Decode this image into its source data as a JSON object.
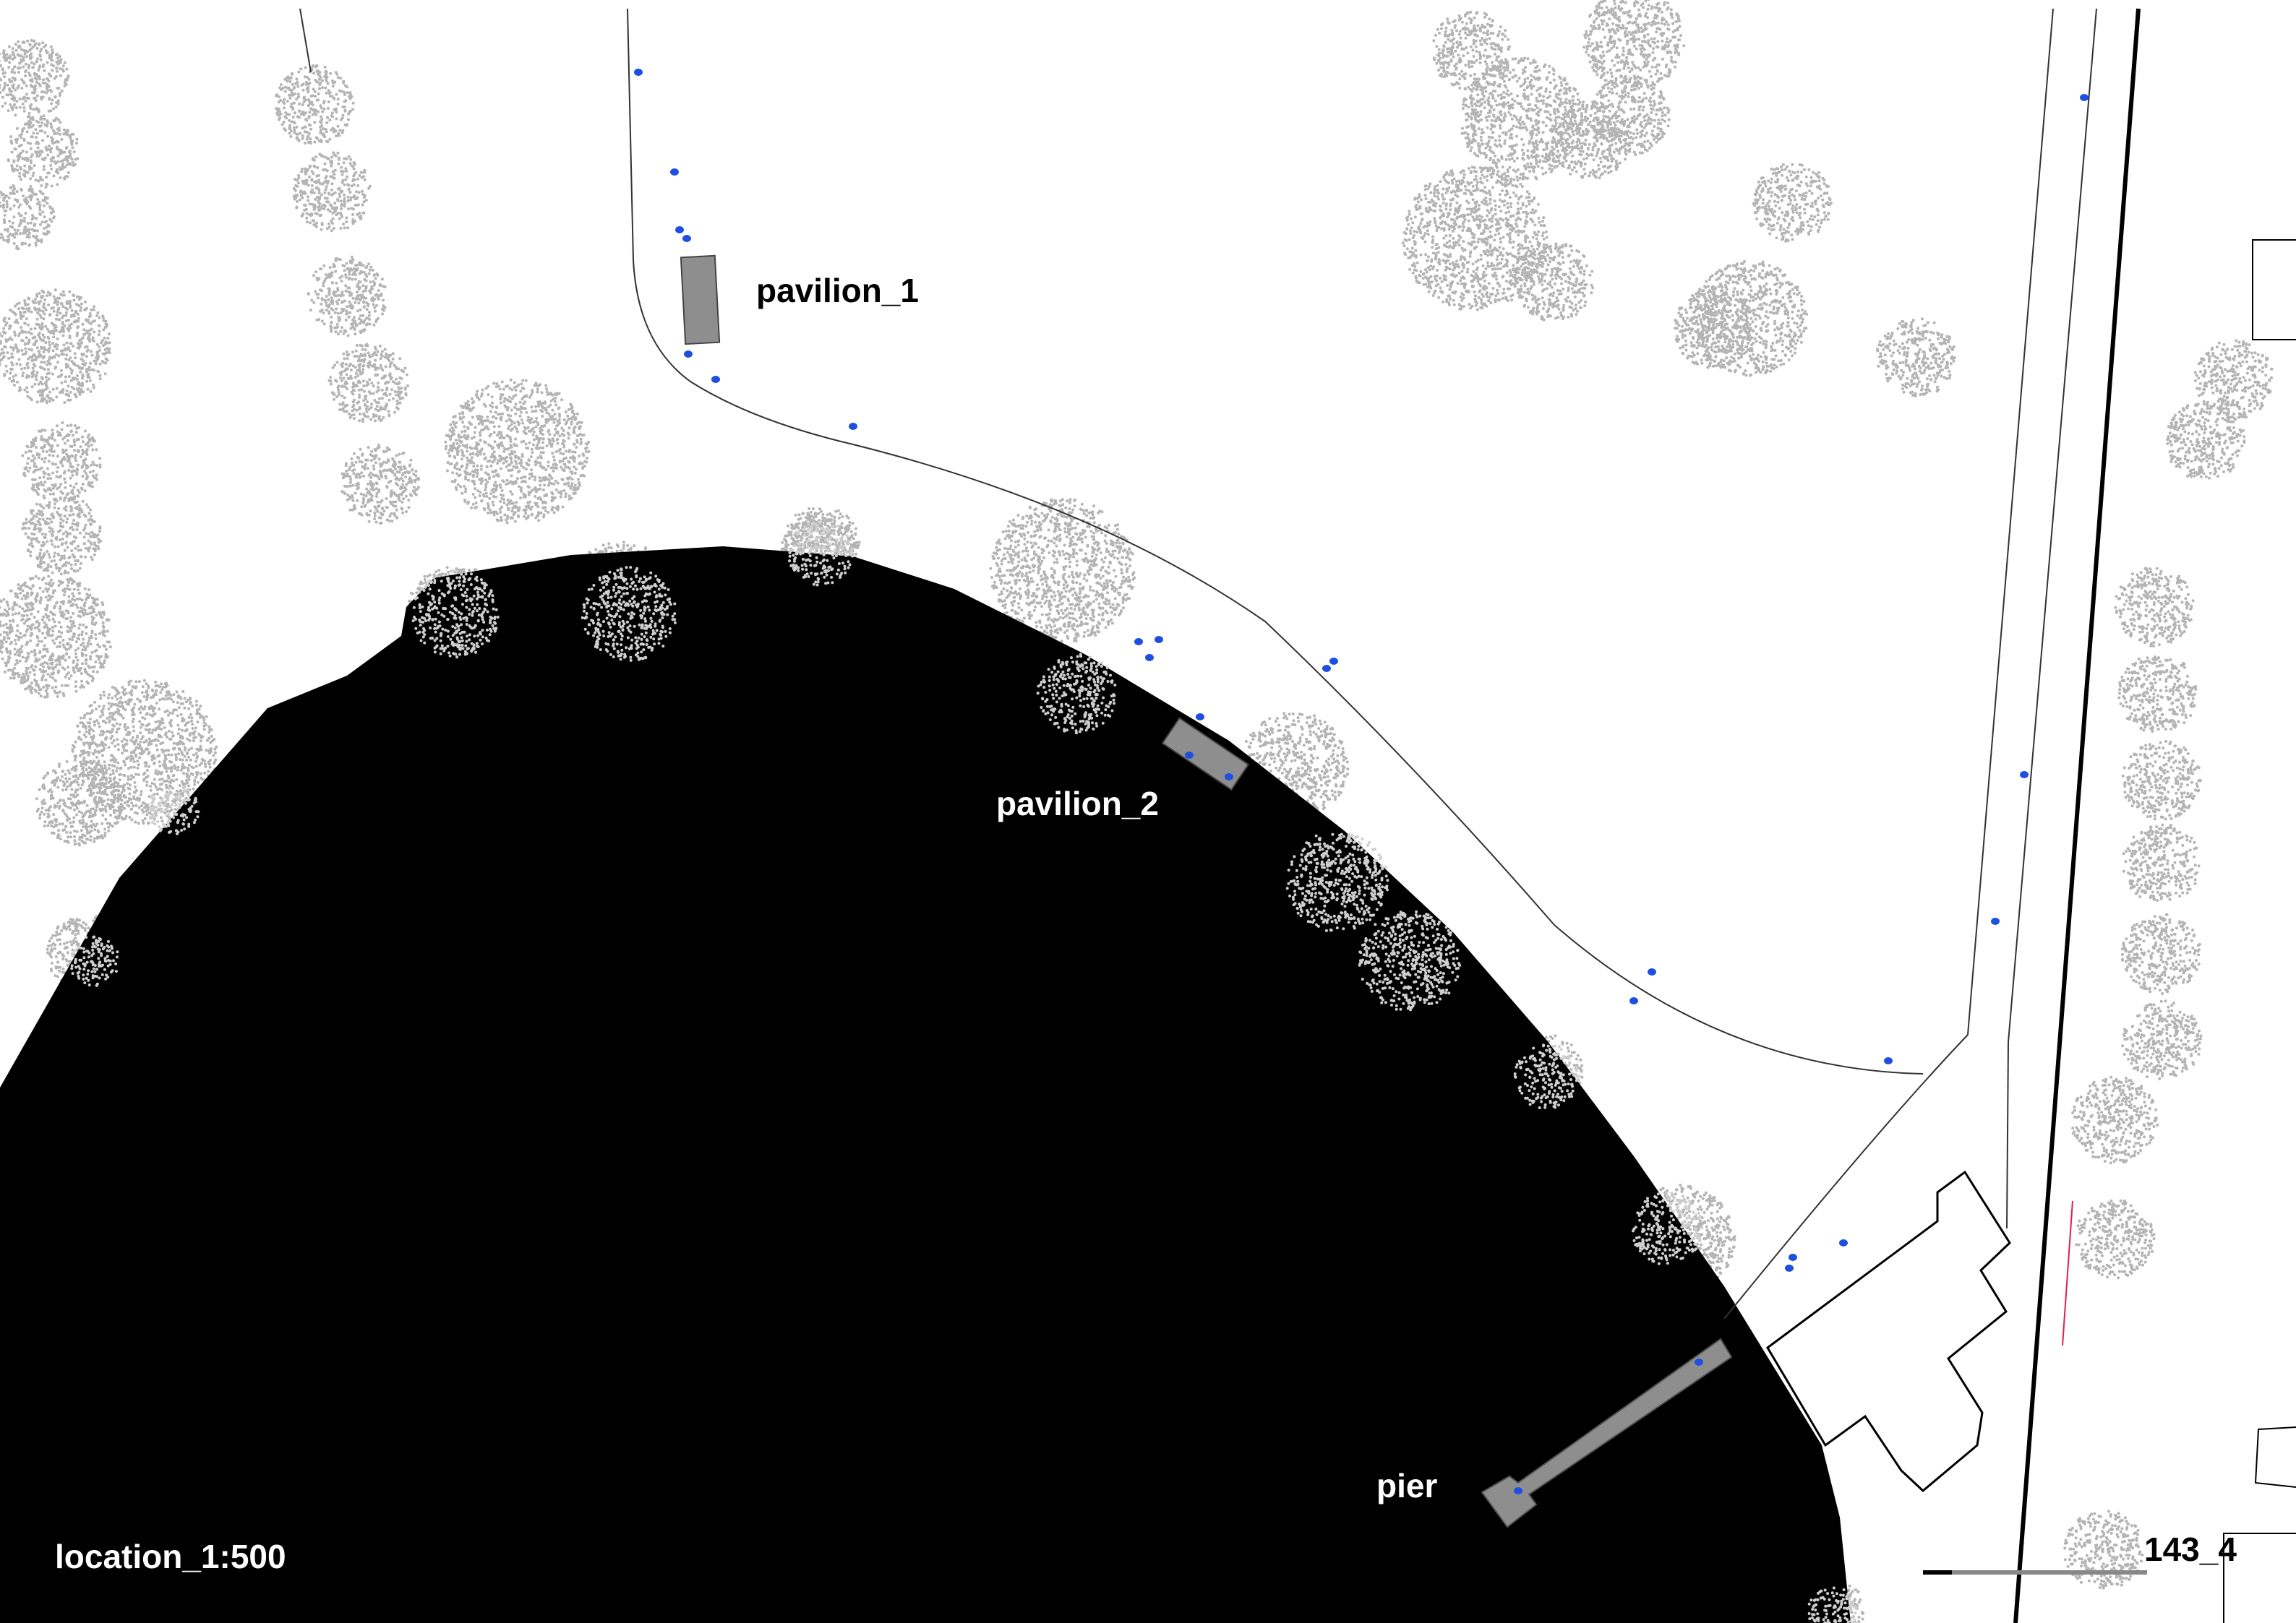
{
  "labels": {
    "pavilion_1": "pavilion_1",
    "pavilion_2": "pavilion_2",
    "pier": "pier",
    "location": "location_1:500",
    "sheet": "143_4"
  },
  "colors": {
    "water": "#000000",
    "building": "#8e8e8e",
    "person": "#1f4fe0",
    "tree_dots": "#b4b4b4",
    "path_line": "#333333",
    "property_line": "#e0204a"
  }
}
